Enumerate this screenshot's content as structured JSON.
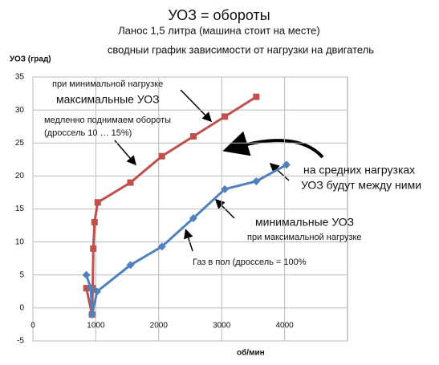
{
  "chart_data": {
    "type": "line",
    "title": "УОЗ = обороты",
    "subtitle": "Ланос 1,5 литра  (машина стоит на месте)",
    "description": "сводныи график  зависимости от нагрузки на двигатель",
    "y_label": "УОЗ (град)",
    "x_label": "об/мин",
    "annotations": [
      "при минимальной нагрузке",
      "максимальные УОЗ",
      "медленно поднимаем обороты",
      "(дроссель 10 … 15%)",
      "на средних нагрузках",
      "УОЗ будут между ними",
      "минимальные УОЗ",
      "при максимальной нагрузке",
      "Газ в пол (дроссель = 100%"
    ],
    "series": [
      {
        "color": "#c0504d",
        "marker": "square",
        "x": [
          850,
          940,
          950,
          960,
          980,
          1030,
          1550,
          2050,
          2550,
          3050,
          3550
        ],
        "values": [
          3,
          -1,
          3,
          9,
          13,
          16,
          19,
          23,
          26,
          29,
          32
        ]
      },
      {
        "color": "#4f81bd",
        "marker": "diamond",
        "x": [
          850,
          920,
          940,
          1020,
          1550,
          2050,
          2550,
          3050,
          3550,
          4030
        ],
        "values": [
          5,
          3,
          -1,
          2.5,
          6.5,
          9.3,
          13.6,
          18,
          19.2,
          21.7
        ]
      }
    ],
    "xlim": [
      0,
      5000
    ],
    "xticks": [
      0,
      1000,
      2000,
      3000,
      4000
    ],
    "ylim": [
      -5,
      35
    ],
    "yticks": [
      -5,
      0,
      5,
      10,
      15,
      20,
      25,
      30,
      35
    ],
    "grid": true
  }
}
